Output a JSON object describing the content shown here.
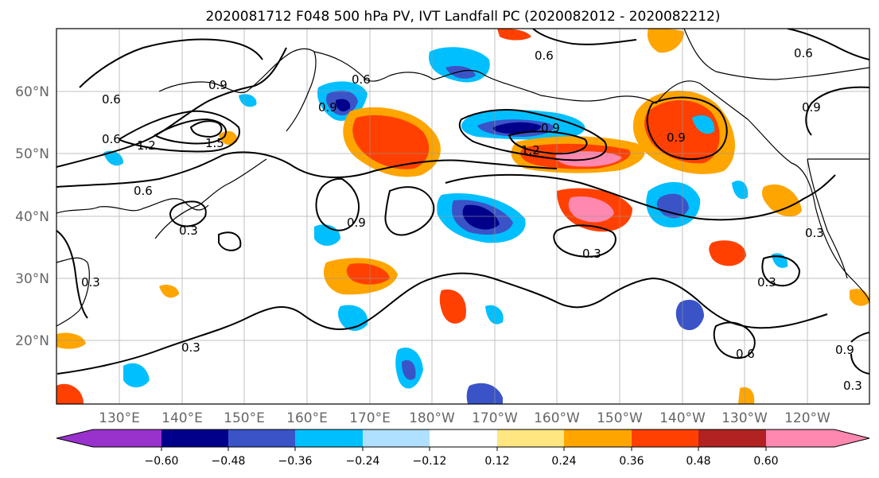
{
  "title": "2020081712 F048 500 hPa PV, IVT Landfall PC (2020082012 - 2020082212)",
  "lat_labels": [
    "60°N",
    "50°N",
    "40°N",
    "30°N",
    "20°N"
  ],
  "lon_labels": [
    "130°E",
    "140°E",
    "150°E",
    "160°E",
    "170°E",
    "180°W",
    "170°W",
    "160°W",
    "150°W",
    "140°W",
    "130°W",
    "120°W"
  ],
  "contour_labels": [
    "0.6",
    "0.9",
    "1.2",
    "1.5",
    "0.6",
    "0.6",
    "0.3",
    "0.3",
    "0.6",
    "0.9",
    "0.6",
    "0.9",
    "1.2",
    "0.9",
    "0.6",
    "0.9",
    "0.9",
    "0.3",
    "0.3",
    "0.3",
    "0.3",
    "0.6",
    "0.9",
    "0.3"
  ],
  "colorbar": {
    "ticks": [
      "−0.60",
      "−0.48",
      "−0.36",
      "−0.24",
      "−0.12",
      "0.12",
      "0.24",
      "0.36",
      "0.48",
      "0.60"
    ],
    "colors": [
      "#9932cc",
      "#00008b",
      "#3a54c8",
      "#00bfff",
      "#b0e0ff",
      "#ffffff",
      "#ffe680",
      "#ffa500",
      "#ff4000",
      "#b22222",
      "#ff88b0"
    ]
  },
  "fill_colors": {
    "neg_light": "#00bfff",
    "neg_mid": "#3a54c8",
    "neg_dark": "#00008b",
    "pos_light": "#ffa500",
    "pos_mid": "#ff4000",
    "pos_dark": "#b22222",
    "pos_max": "#ff88b0",
    "pos_pale": "#ffe680"
  }
}
